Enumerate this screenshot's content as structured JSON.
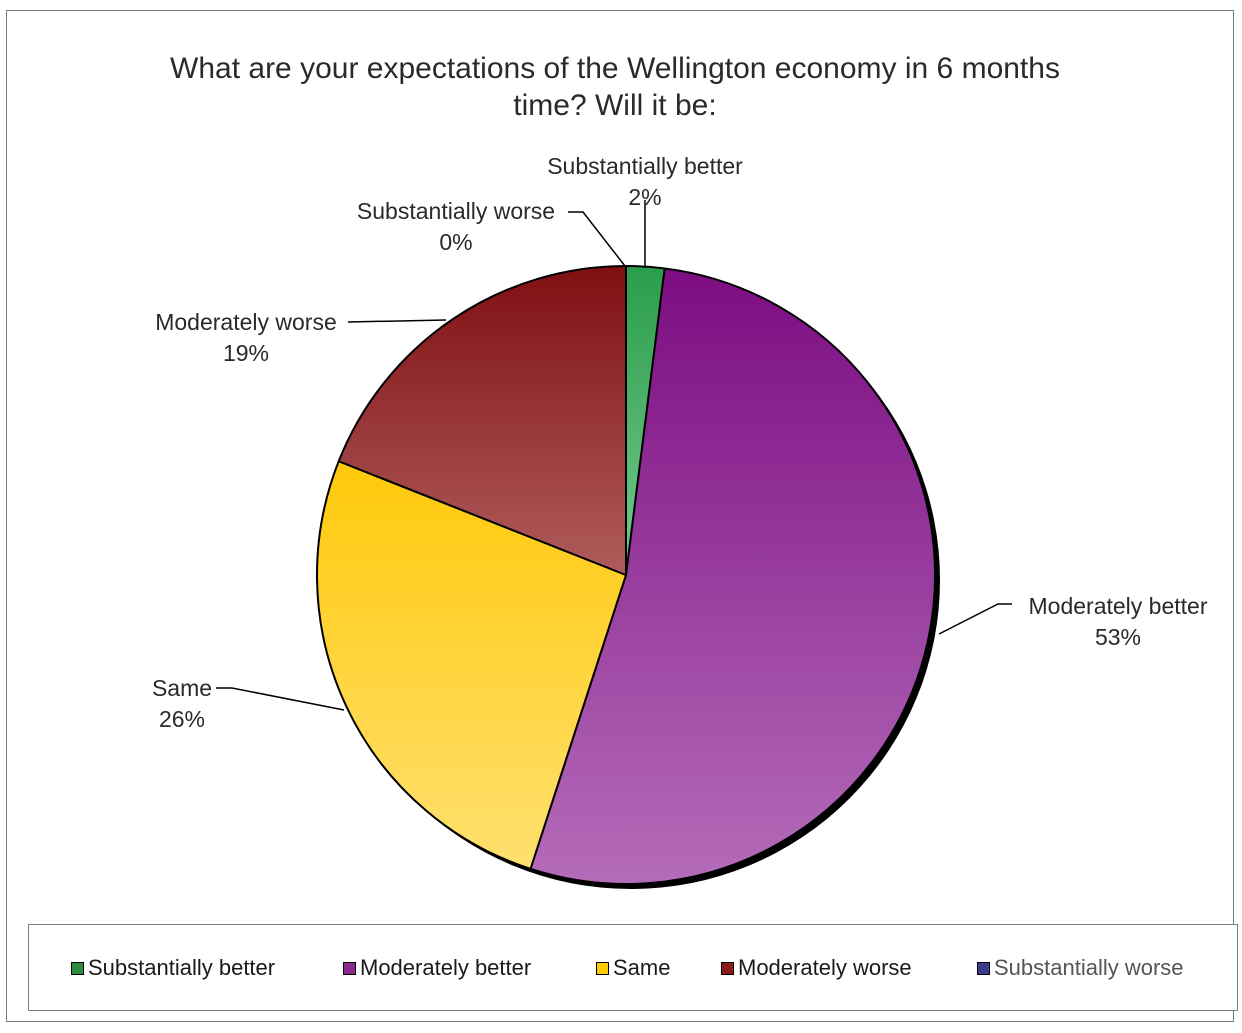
{
  "chart_data": {
    "type": "pie",
    "title_lines": [
      "What are your expectations of the Wellington economy in 6 months",
      "time? Will it be:"
    ],
    "slices": [
      {
        "label": "Substantially better",
        "value": 2,
        "value_label": "2%",
        "color": "#2a9d4a",
        "color_light": "#76c98e",
        "legend_color": "#2e8b3e"
      },
      {
        "label": "Moderately better",
        "value": 53,
        "value_label": "53%",
        "color": "#7c0d82",
        "color_light": "#b46cb9",
        "legend_color": "#8a2a90"
      },
      {
        "label": "Same",
        "value": 26,
        "value_label": "26%",
        "color": "#ffc90a",
        "color_light": "#ffe070",
        "legend_color": "#ffcc00"
      },
      {
        "label": "Moderately worse",
        "value": 19,
        "value_label": "19%",
        "color": "#7f0f12",
        "color_light": "#b05c5c",
        "legend_color": "#8b1a1a"
      },
      {
        "label": "Substantially worse",
        "value": 0,
        "value_label": "0%",
        "color": "#3b3b8c",
        "color_light": "#6a6ab8",
        "legend_color": "#3b3b8c"
      }
    ],
    "legend_position": "bottom",
    "data_labels": "category and percentage with leader lines"
  }
}
